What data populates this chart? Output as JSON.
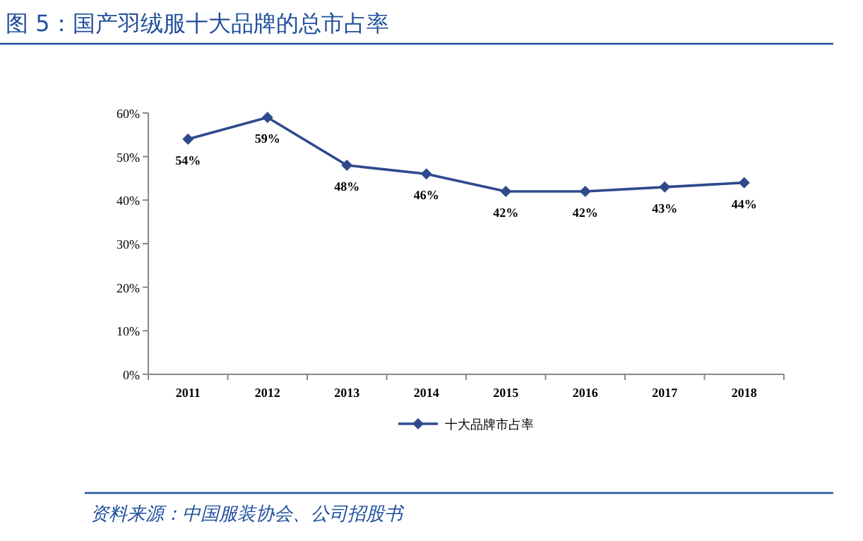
{
  "chart_data": {
    "type": "line",
    "title": "图 5：国产羽绒服十大品牌的总市占率",
    "categories": [
      "2011",
      "2012",
      "2013",
      "2014",
      "2015",
      "2016",
      "2017",
      "2018"
    ],
    "series": [
      {
        "name": "十大品牌市占率",
        "color": "#2e4a8c",
        "values": [
          54,
          59,
          48,
          46,
          42,
          42,
          43,
          44
        ],
        "value_labels": [
          "54%",
          "59%",
          "48%",
          "46%",
          "42%",
          "42%",
          "43%",
          "44%"
        ]
      }
    ],
    "ylim": [
      0,
      60
    ],
    "yticks": [
      {
        "value": 0,
        "label": "0%"
      },
      {
        "value": 10,
        "label": "10%"
      },
      {
        "value": 20,
        "label": "20%"
      },
      {
        "value": 30,
        "label": "30%"
      },
      {
        "value": 40,
        "label": "40%"
      },
      {
        "value": 50,
        "label": "50%"
      },
      {
        "value": 60,
        "label": "60%"
      }
    ],
    "marker": "diamond",
    "legend": "bottom",
    "grid": false,
    "annotations": [
      "资料来源：中国服装协会、公司招股书"
    ]
  }
}
